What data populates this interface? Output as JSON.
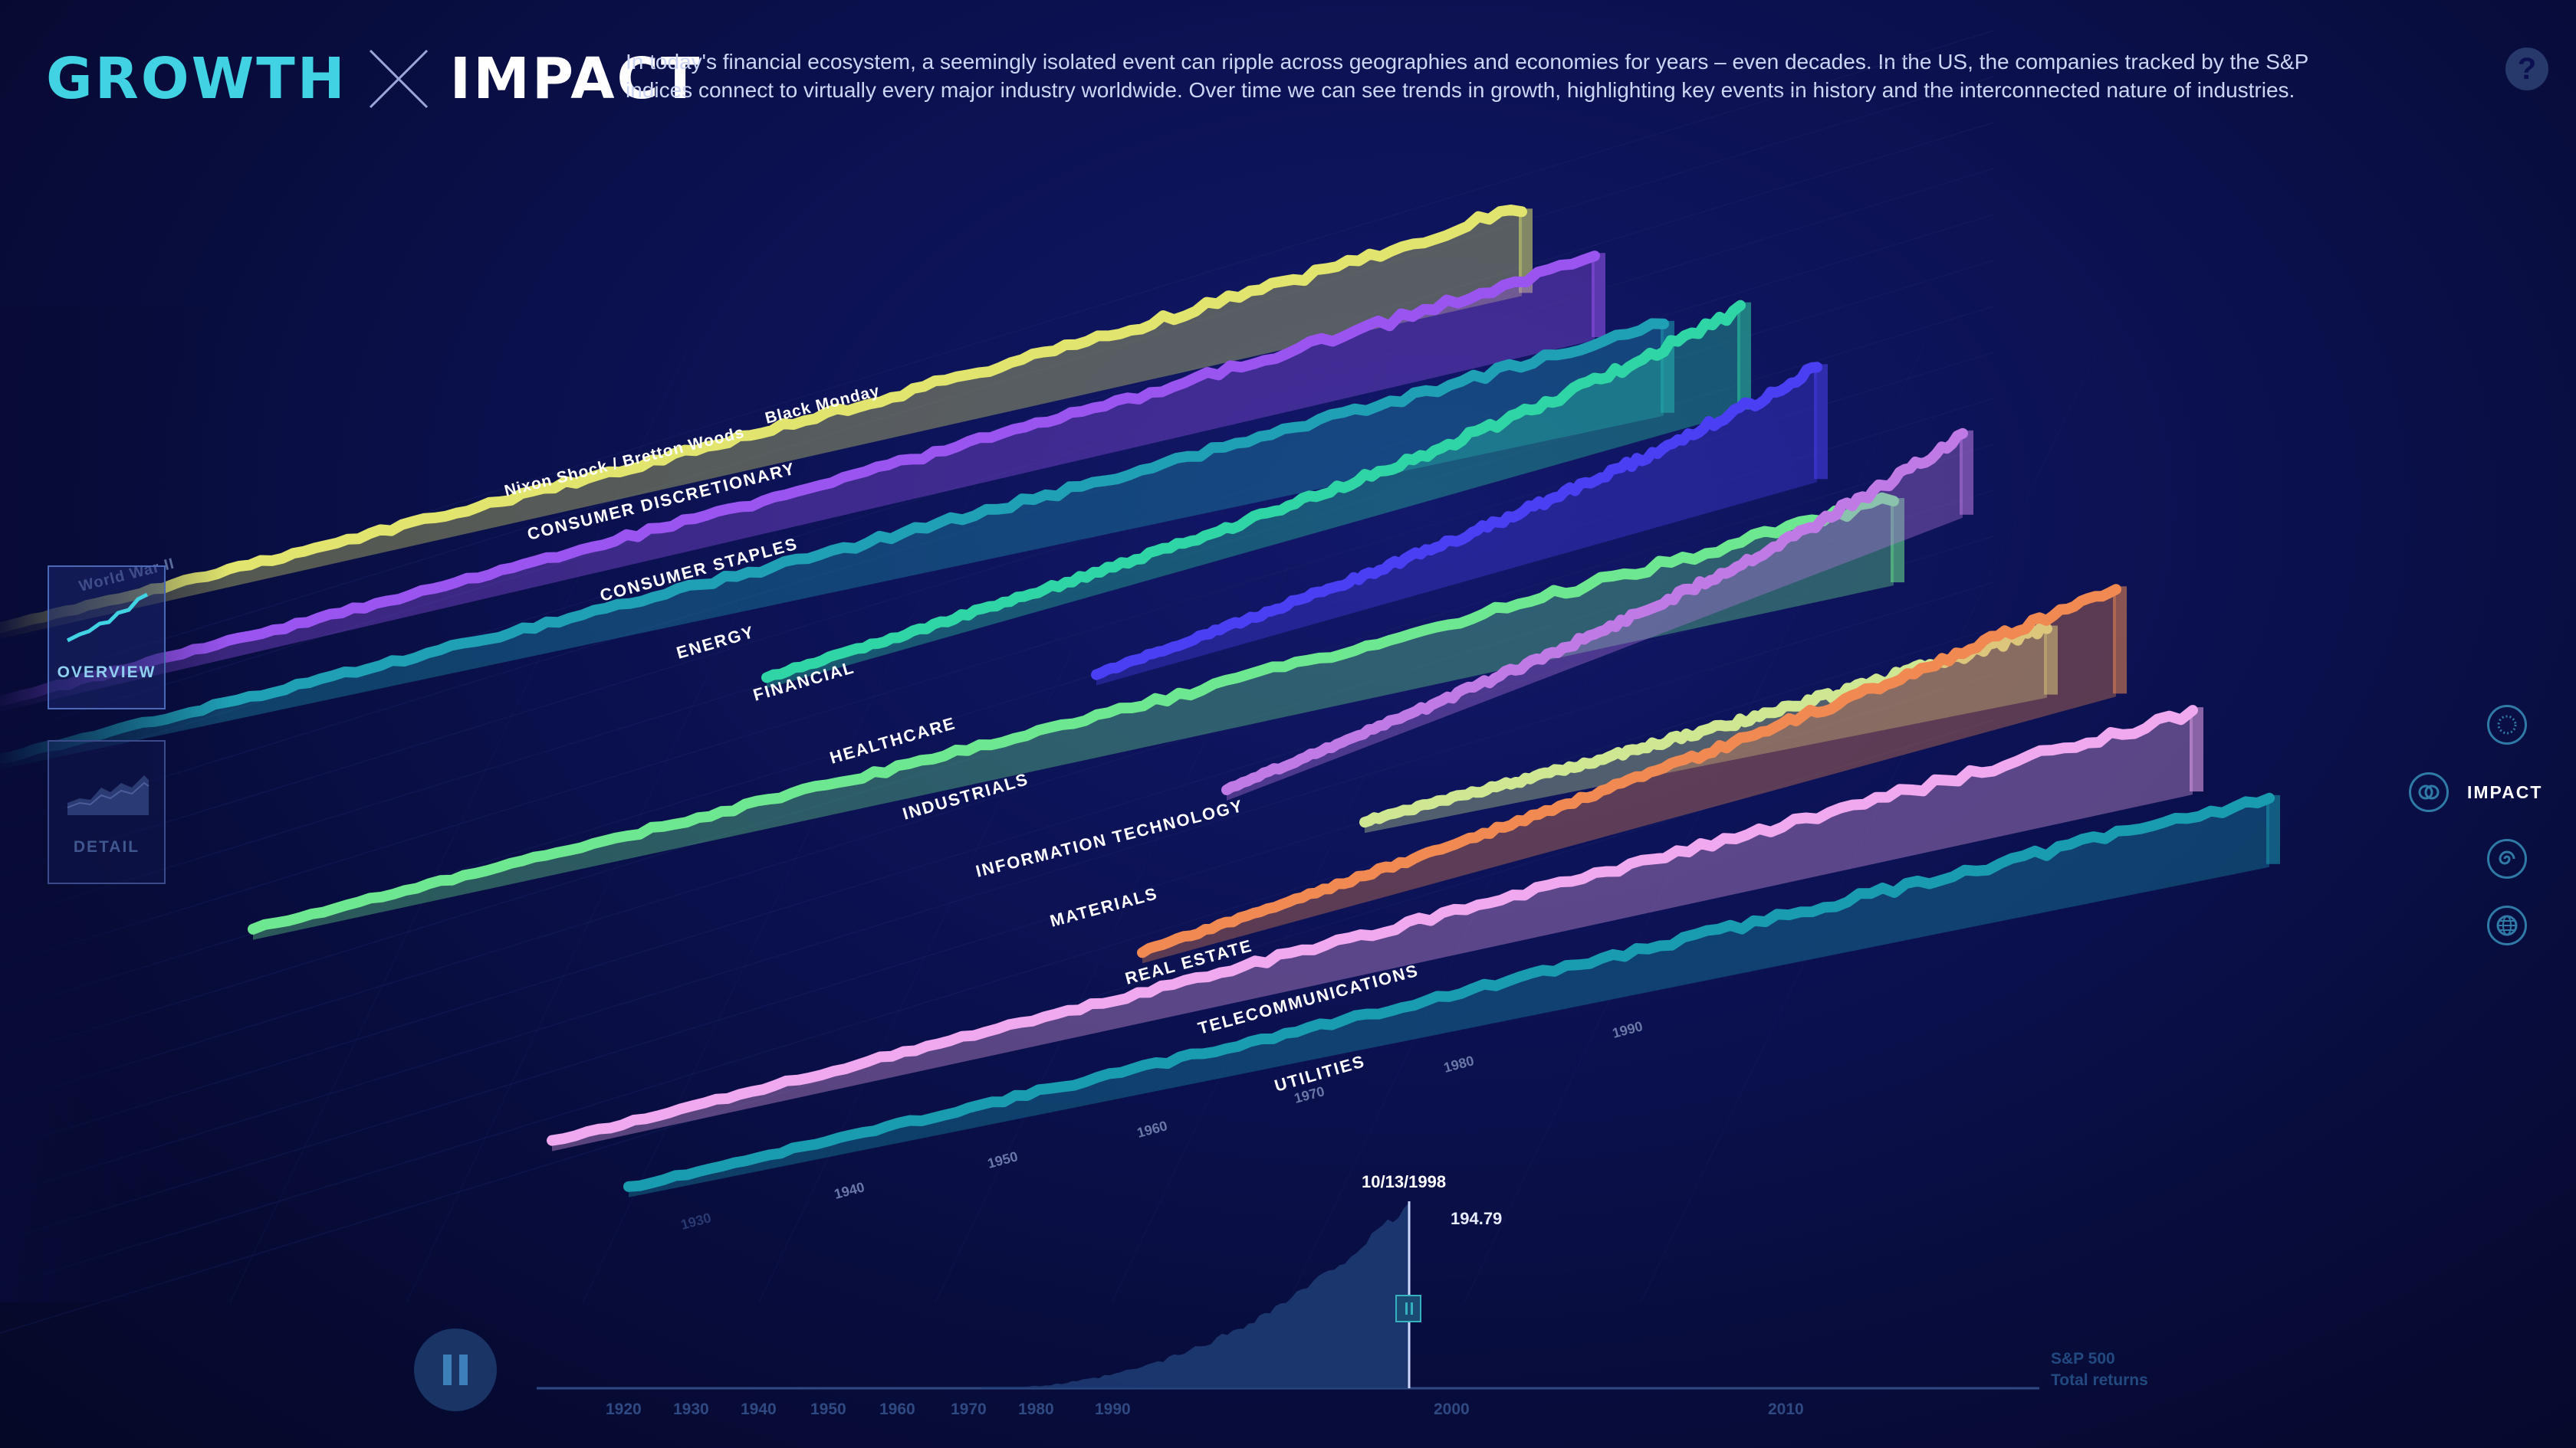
{
  "brand": {
    "word1": "GROWTH",
    "word2": "IMPACT"
  },
  "intro": "In today's financial ecosystem, a seemingly isolated event can ripple across geographies and economies for years – even decades. In the US, the companies tracked by the S&P indices connect to virtually every major industry worldwide. Over time we can see trends in growth, highlighting key events in history and the interconnected nature of industries.",
  "help_label": "?",
  "left_nav": {
    "overview": "OVERVIEW",
    "detail": "DETAIL"
  },
  "right_nav": {
    "impact": "IMPACT"
  },
  "events": [
    "Nixon Shock / Bretton Woods",
    "Black Monday",
    "World War II"
  ],
  "sectors": [
    {
      "name": "CONSUMER DISCRETIONARY",
      "color": "#e1e56e"
    },
    {
      "name": "CONSUMER STAPLES",
      "color": "#9a55f0"
    },
    {
      "name": "ENERGY",
      "color": "#1fa0b4"
    },
    {
      "name": "FINANCIAL",
      "color": "#2fd5a4"
    },
    {
      "name": "HEALTHCARE",
      "color": "#4a3ff2"
    },
    {
      "name": "INDUSTRIALS",
      "color": "#6ee890"
    },
    {
      "name": "INFORMATION TECHNOLOGY",
      "color": "#c07ae6"
    },
    {
      "name": "MATERIALS",
      "color": "#cfe792"
    },
    {
      "name": "REAL ESTATE",
      "color": "#f08a52"
    },
    {
      "name": "TELECOMMUNICATIONS",
      "color": "#f0a8ee"
    },
    {
      "name": "UTILITIES",
      "color": "#1a9cb0"
    }
  ],
  "decade_labels": [
    "1930",
    "1940",
    "1950",
    "1960",
    "1970",
    "1980",
    "1990"
  ],
  "timeline": {
    "ticks": [
      "1920",
      "1930",
      "1940",
      "1950",
      "1960",
      "1970",
      "1980",
      "1990",
      "2000",
      "2010"
    ],
    "date": "10/13/1998",
    "value": "194.79",
    "index_label_1": "S&P 500",
    "index_label_2": "Total returns"
  },
  "colors": {
    "accent": "#41d2e4",
    "background": "#0b1150"
  }
}
